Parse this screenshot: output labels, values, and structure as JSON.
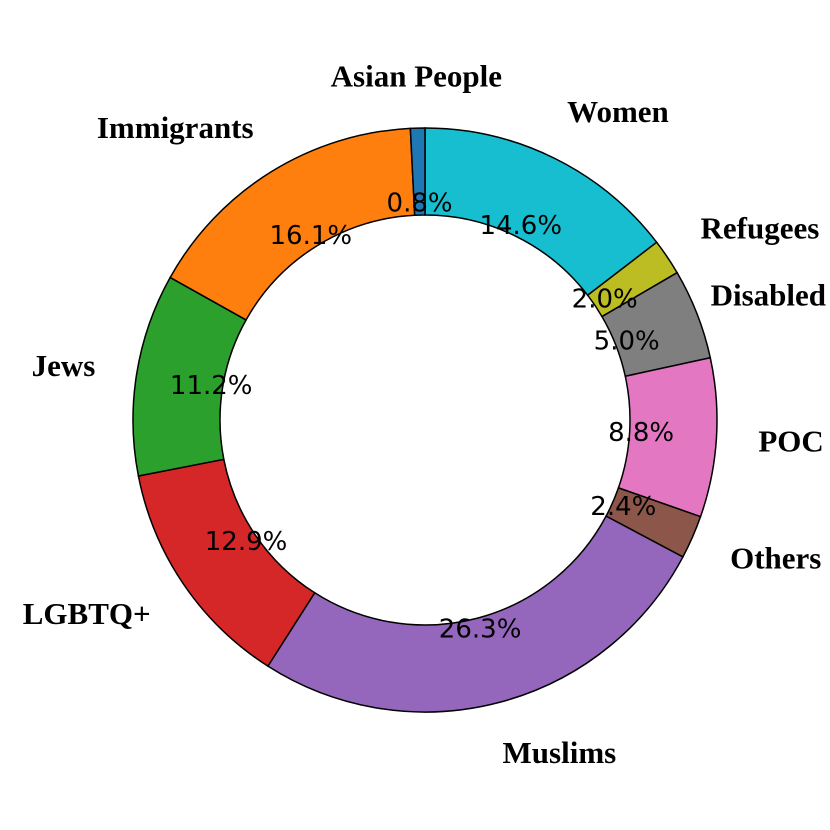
{
  "chart_data": {
    "type": "pie",
    "variant": "donut",
    "title": "",
    "start_angle_deg": 90,
    "direction": "clockwise",
    "slices": [
      {
        "label": "Women",
        "value": 14.6,
        "pct_label": "14.6%",
        "color": "#17becf"
      },
      {
        "label": "Refugees",
        "value": 2.0,
        "pct_label": "2.0%",
        "color": "#bcbd22"
      },
      {
        "label": "Disabled",
        "value": 5.0,
        "pct_label": "5.0%",
        "color": "#7f7f7f"
      },
      {
        "label": "POC",
        "value": 8.8,
        "pct_label": "8.8%",
        "color": "#e377c2"
      },
      {
        "label": "Others",
        "value": 2.4,
        "pct_label": "2.4%",
        "color": "#8c564b"
      },
      {
        "label": "Muslims",
        "value": 26.3,
        "pct_label": "26.3%",
        "color": "#9467bd"
      },
      {
        "label": "LGBTQ+",
        "value": 12.9,
        "pct_label": "12.9%",
        "color": "#d62728"
      },
      {
        "label": "Jews",
        "value": 11.2,
        "pct_label": "11.2%",
        "color": "#2ca02c"
      },
      {
        "label": "Immigrants",
        "value": 16.1,
        "pct_label": "16.1%",
        "color": "#ff7f0e"
      },
      {
        "label": "Asian People",
        "value": 0.8,
        "pct_label": "0.8%",
        "color": "#1f77b4"
      }
    ]
  }
}
